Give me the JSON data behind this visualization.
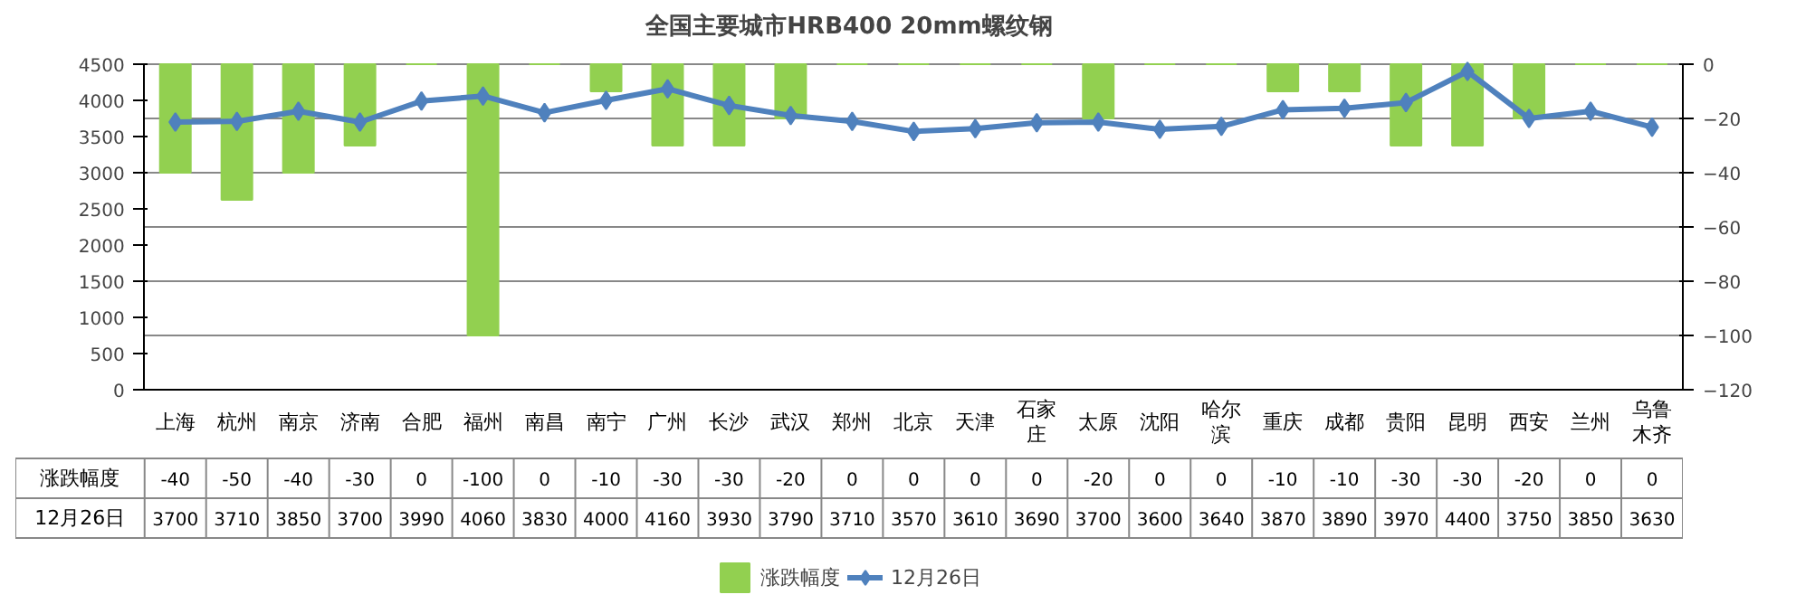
{
  "chart_data": {
    "type": "bar",
    "title": "全国主要城市HRB400 20mm螺纹钢",
    "categories": [
      "上海",
      "杭州",
      "南京",
      "济南",
      "合肥",
      "福州",
      "南昌",
      "南宁",
      "广州",
      "长沙",
      "武汉",
      "郑州",
      "北京",
      "天津",
      "石家庄",
      "太原",
      "沈阳",
      "哈尔滨",
      "重庆",
      "成都",
      "贵阳",
      "昆明",
      "西安",
      "兰州",
      "乌鲁木齐"
    ],
    "series": [
      {
        "name": "涨跌幅度",
        "axis": "y2",
        "color": "#92d050",
        "values": [
          -40,
          -50,
          -40,
          -30,
          0,
          -100,
          0,
          -10,
          -30,
          -30,
          -20,
          0,
          0,
          0,
          0,
          -20,
          0,
          0,
          -10,
          -10,
          -30,
          -30,
          -20,
          0,
          0
        ]
      },
      {
        "name": "12月26日",
        "type": "line",
        "color": "#4f81bd",
        "marker": "diamond",
        "values": [
          3700,
          3710,
          3850,
          3700,
          3990,
          4060,
          3830,
          4000,
          4160,
          3930,
          3790,
          3710,
          3570,
          3610,
          3690,
          3700,
          3600,
          3640,
          3870,
          3890,
          3970,
          4400,
          3750,
          3850,
          3630
        ]
      }
    ],
    "ylim": [
      0,
      4500
    ],
    "yticks": [
      0,
      500,
      1000,
      1500,
      2000,
      2500,
      3000,
      3500,
      4000,
      4500
    ],
    "y2lim": [
      -120,
      0
    ],
    "y2ticks": [
      -120,
      -100,
      -80,
      -60,
      -40,
      -20,
      0
    ],
    "grid": true,
    "legend": "bottom",
    "data_labels": true
  }
}
